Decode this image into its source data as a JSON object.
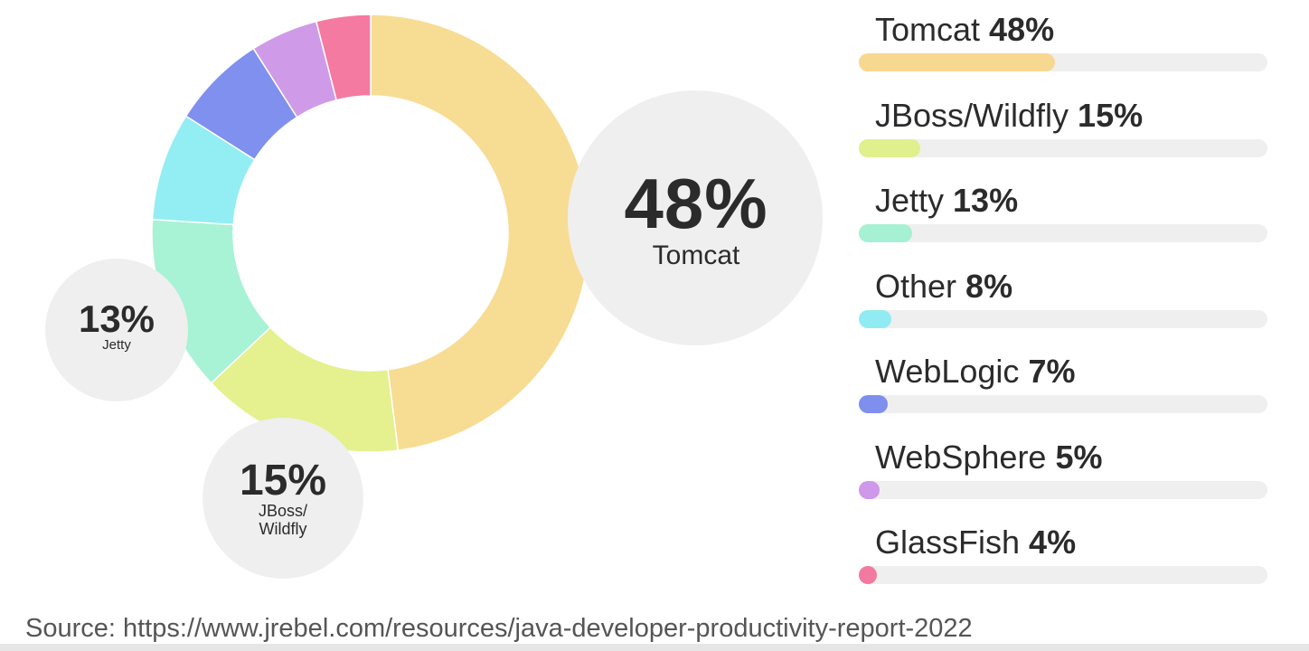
{
  "chart_data": {
    "type": "pie",
    "series": [
      {
        "name": "Tomcat",
        "value": 48,
        "color": "#f7dc93"
      },
      {
        "name": "JBoss/Wildfly",
        "value": 15,
        "color": "#e4f18e"
      },
      {
        "name": "Jetty",
        "value": 13,
        "color": "#a8f2d6"
      },
      {
        "name": "Other",
        "value": 8,
        "color": "#93eef3"
      },
      {
        "name": "WebLogic",
        "value": 7,
        "color": "#7f90ee"
      },
      {
        "name": "WebSphere",
        "value": 5,
        "color": "#cf9be9"
      },
      {
        "name": "GlassFish",
        "value": 4,
        "color": "#f47aa1"
      }
    ],
    "callouts": {
      "tomcat": {
        "value": "48%",
        "label": "Tomcat"
      },
      "jetty": {
        "value": "13%",
        "label": "Jetty"
      },
      "jboss": {
        "value": "15%",
        "label_line1": "JBoss/",
        "label_line2": "Wildfly"
      }
    },
    "legend": [
      {
        "name": "Tomcat",
        "pct": "48%",
        "value": 48,
        "color": "#f7d890"
      },
      {
        "name": "JBoss/Wildfly",
        "pct": "15%",
        "value": 15,
        "color": "#dff08c"
      },
      {
        "name": "Jetty",
        "pct": "13%",
        "value": 13,
        "color": "#a6f0d4"
      },
      {
        "name": "Other",
        "pct": "8%",
        "value": 8,
        "color": "#90ecf2"
      },
      {
        "name": "WebLogic",
        "pct": "7%",
        "value": 7,
        "color": "#7f8fee"
      },
      {
        "name": "WebSphere",
        "pct": "5%",
        "value": 5,
        "color": "#cf98ea"
      },
      {
        "name": "GlassFish",
        "pct": "4%",
        "value": 4,
        "color": "#f27aa0"
      }
    ],
    "legend_bar_max": 100,
    "source": "Source: https://www.jrebel.com/resources/java-developer-productivity-report-2022"
  }
}
